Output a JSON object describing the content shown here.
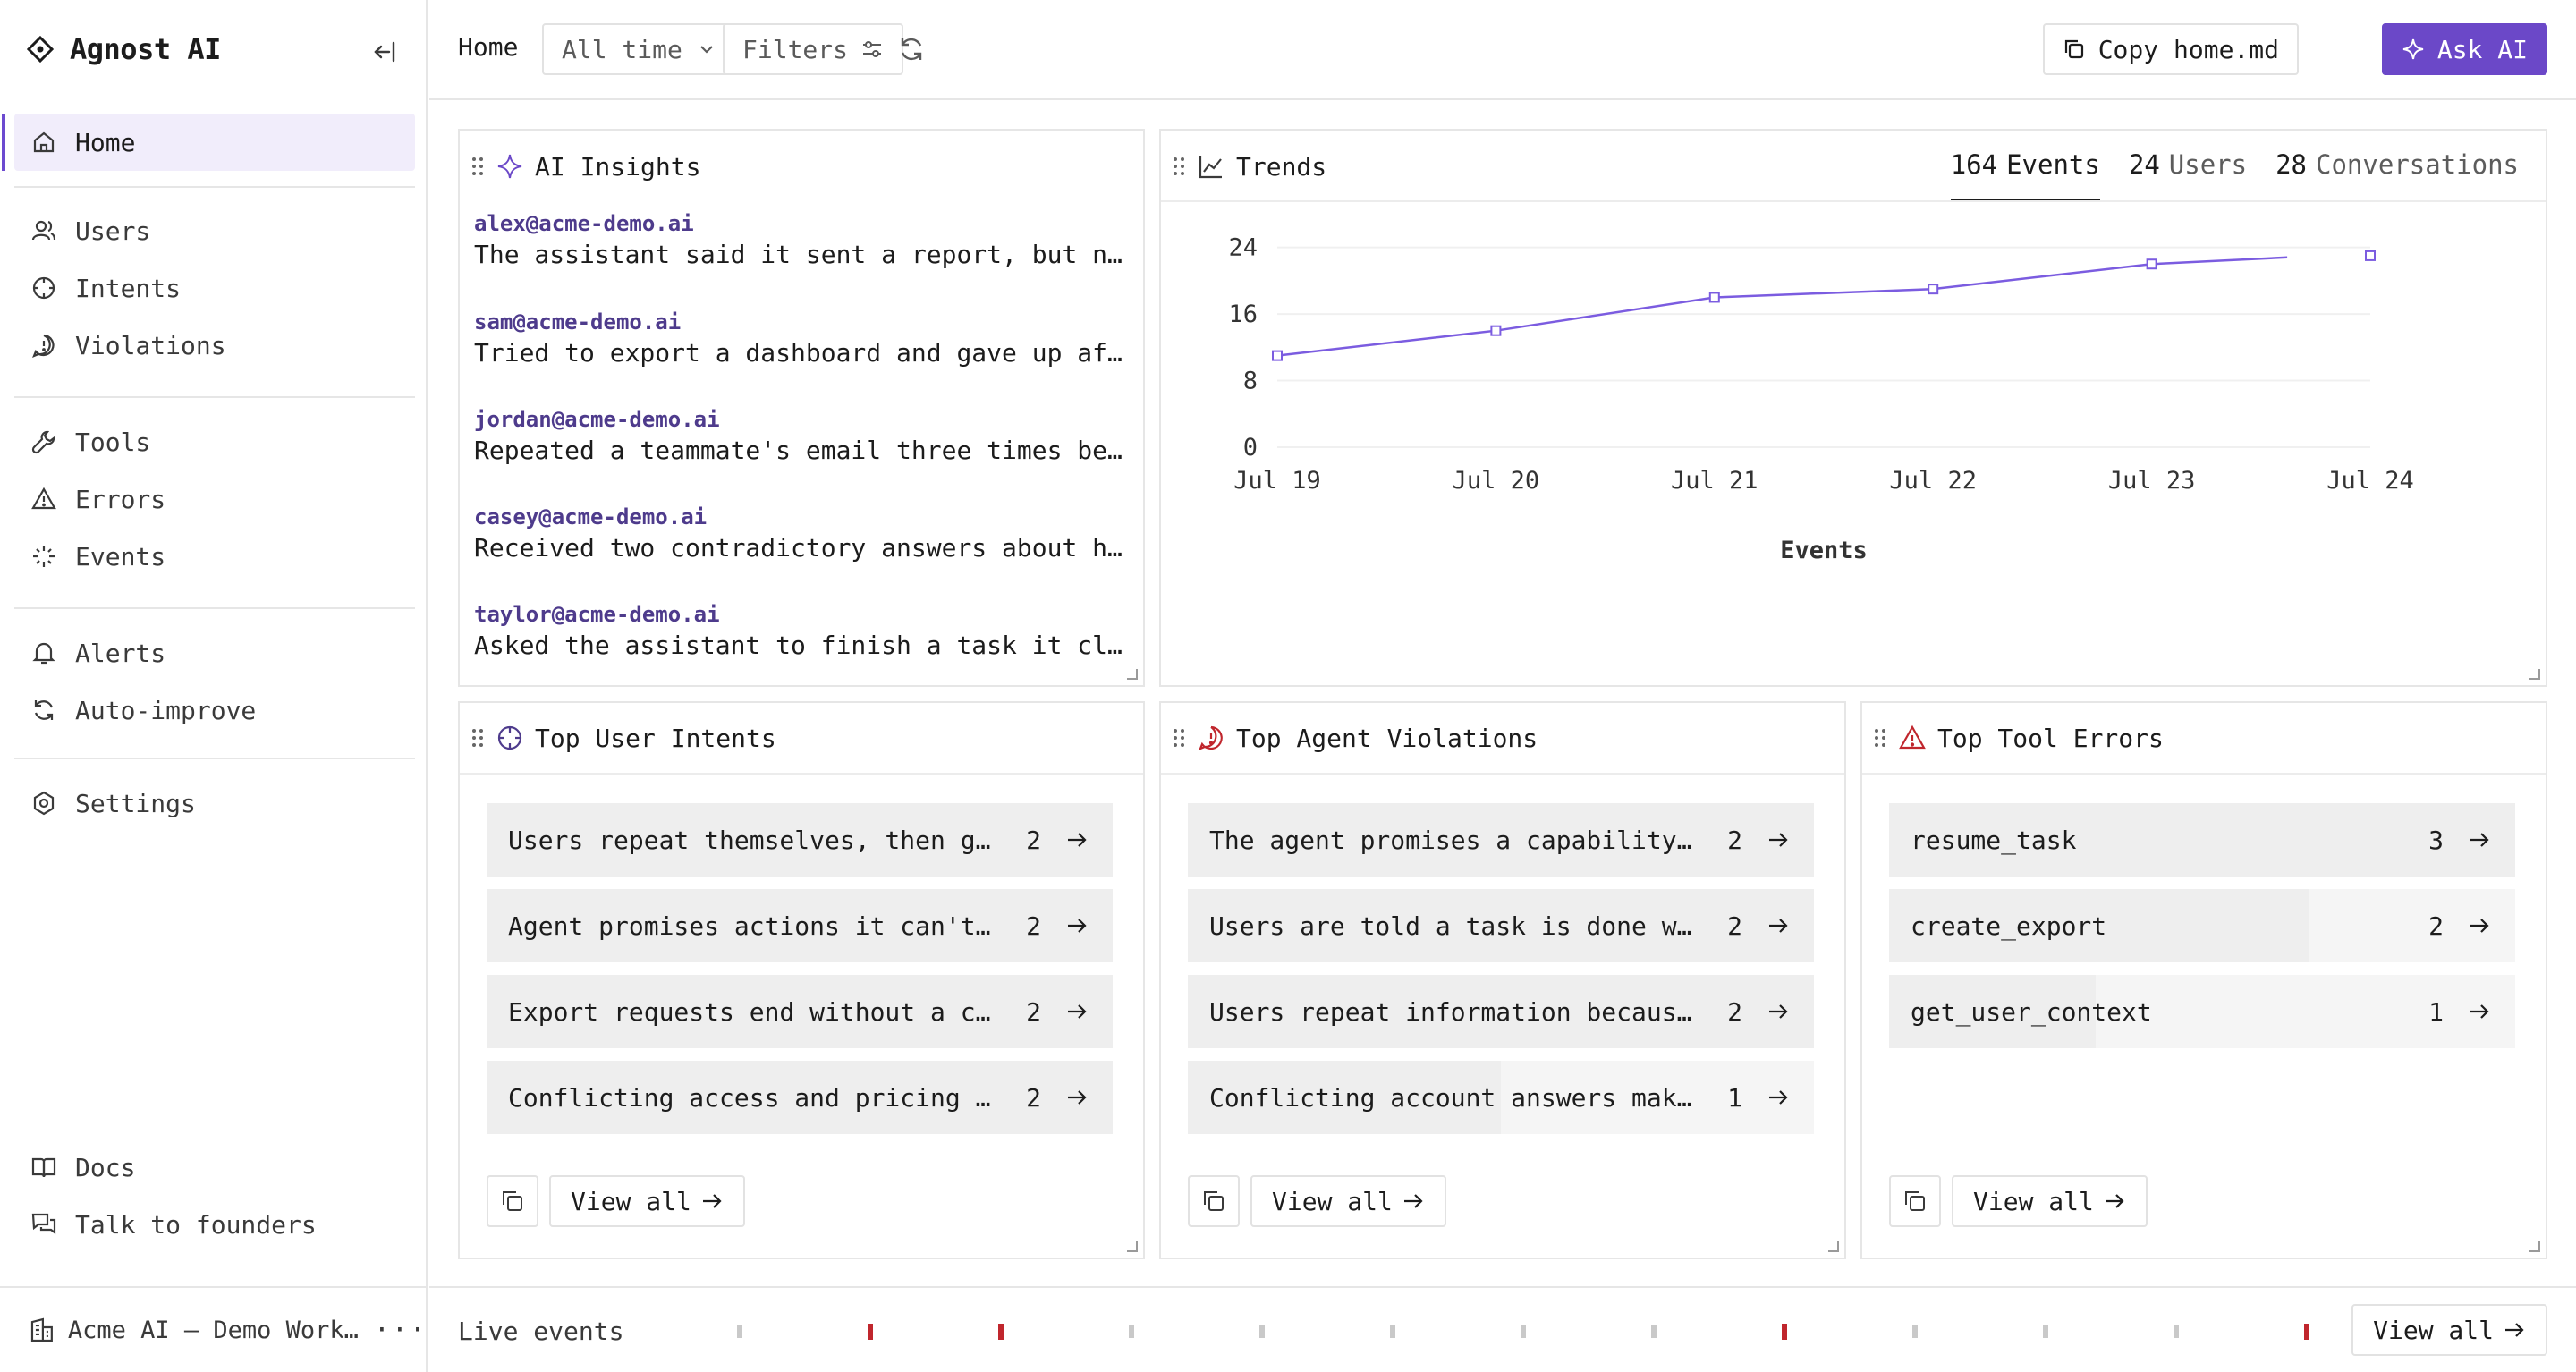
{
  "brand": {
    "name": "Agnost AI"
  },
  "sidebar": {
    "items_main": [
      {
        "label": "Home",
        "icon": "home-icon"
      }
    ],
    "items_analysis": [
      {
        "label": "Users",
        "icon": "users-icon"
      },
      {
        "label": "Intents",
        "icon": "intents-icon"
      },
      {
        "label": "Violations",
        "icon": "violations-icon"
      }
    ],
    "items_ops": [
      {
        "label": "Tools",
        "icon": "wrench-icon"
      },
      {
        "label": "Errors",
        "icon": "warning-icon"
      },
      {
        "label": "Events",
        "icon": "sparkle-icon"
      }
    ],
    "items_automation": [
      {
        "label": "Alerts",
        "icon": "bell-icon"
      },
      {
        "label": "Auto-improve",
        "icon": "cycle-icon"
      }
    ],
    "items_settings": [
      {
        "label": "Settings",
        "icon": "gear-icon"
      }
    ],
    "items_bottom": [
      {
        "label": "Docs",
        "icon": "book-icon"
      },
      {
        "label": "Talk to founders",
        "icon": "chat-icon"
      }
    ],
    "workspace": "Acme AI — Demo Workspace"
  },
  "header": {
    "breadcrumb": "Home",
    "time_range": "All time",
    "filters_label": "Filters",
    "copy_label": "Copy home.md",
    "ask_label": "Ask AI"
  },
  "insights": {
    "title": "AI Insights",
    "items": [
      {
        "email": "alex@acme-demo.ai",
        "text": "The assistant said it sent a report, but no one on the team received it."
      },
      {
        "email": "sam@acme-demo.ai",
        "text": "Tried to export a dashboard and gave up after the progress bar stalled."
      },
      {
        "email": "jordan@acme-demo.ai",
        "text": "Repeated a teammate's email three times because the assistant kept forgetting it."
      },
      {
        "email": "casey@acme-demo.ai",
        "text": "Received two contradictory answers about how many seats the plan includes."
      },
      {
        "email": "taylor@acme-demo.ai",
        "text": "Asked the assistant to finish a task it claimed was already complete."
      }
    ]
  },
  "trends": {
    "title": "Trends",
    "tabs": [
      {
        "num": "164",
        "label": "Events"
      },
      {
        "num": "24",
        "label": "Users"
      },
      {
        "num": "28",
        "label": "Conversations"
      }
    ]
  },
  "chart_data": {
    "type": "line",
    "x": [
      "Jul 19",
      "Jul 20",
      "Jul 21",
      "Jul 22",
      "Jul 23",
      "Jul 24"
    ],
    "series": [
      {
        "values": [
          11,
          14,
          18,
          19,
          22,
          23
        ]
      }
    ],
    "extra_line": {
      "x": "Jul 23.62",
      "y": 22.8
    },
    "xlabel": "Events",
    "ylabel": "",
    "yticks": [
      0,
      8,
      16,
      24
    ],
    "ylim": [
      0,
      26
    ],
    "grid": true,
    "color": "#7b5ce0"
  },
  "intents": {
    "title": "Top User Intents",
    "view_all": "View all",
    "rows": [
      {
        "label": "Users repeat themselves, then give up",
        "count": "2",
        "share": 1.0
      },
      {
        "label": "Agent promises actions it can't take",
        "count": "2",
        "share": 1.0
      },
      {
        "label": "Export requests end without a completed file",
        "count": "2",
        "share": 1.0
      },
      {
        "label": "Conflicting access and pricing answers confuse users",
        "count": "2",
        "share": 1.0
      }
    ]
  },
  "violations": {
    "title": "Top Agent Violations",
    "view_all": "View all",
    "rows": [
      {
        "label": "The agent promises a capability it can't deliver",
        "count": "2",
        "share": 1.0
      },
      {
        "label": "Users are told a task is done when it is not",
        "count": "2",
        "share": 1.0
      },
      {
        "label": "Users repeat information because the agent forgets",
        "count": "2",
        "share": 1.0
      },
      {
        "label": "Conflicting account answers make users distrust the agent",
        "count": "1",
        "share": 0.5
      }
    ]
  },
  "errors": {
    "title": "Top Tool Errors",
    "view_all": "View all",
    "rows": [
      {
        "label": "resume_task",
        "count": "3",
        "share": 1.0
      },
      {
        "label": "create_export",
        "count": "2",
        "share": 0.67
      },
      {
        "label": "get_user_context",
        "count": "1",
        "share": 0.33
      }
    ]
  },
  "live": {
    "label": "Live events",
    "view_all": "View all",
    "ticks": [
      "ok",
      "error",
      "error",
      "ok",
      "ok",
      "ok",
      "ok",
      "ok",
      "error",
      "ok",
      "ok",
      "ok",
      "error"
    ],
    "colors": {
      "ok": "#c9c9c9",
      "error": "#c0262d"
    }
  },
  "colors": {
    "accent": "#6b48c8",
    "active_bg": "#f1edfb",
    "violation": "#c0262d"
  }
}
